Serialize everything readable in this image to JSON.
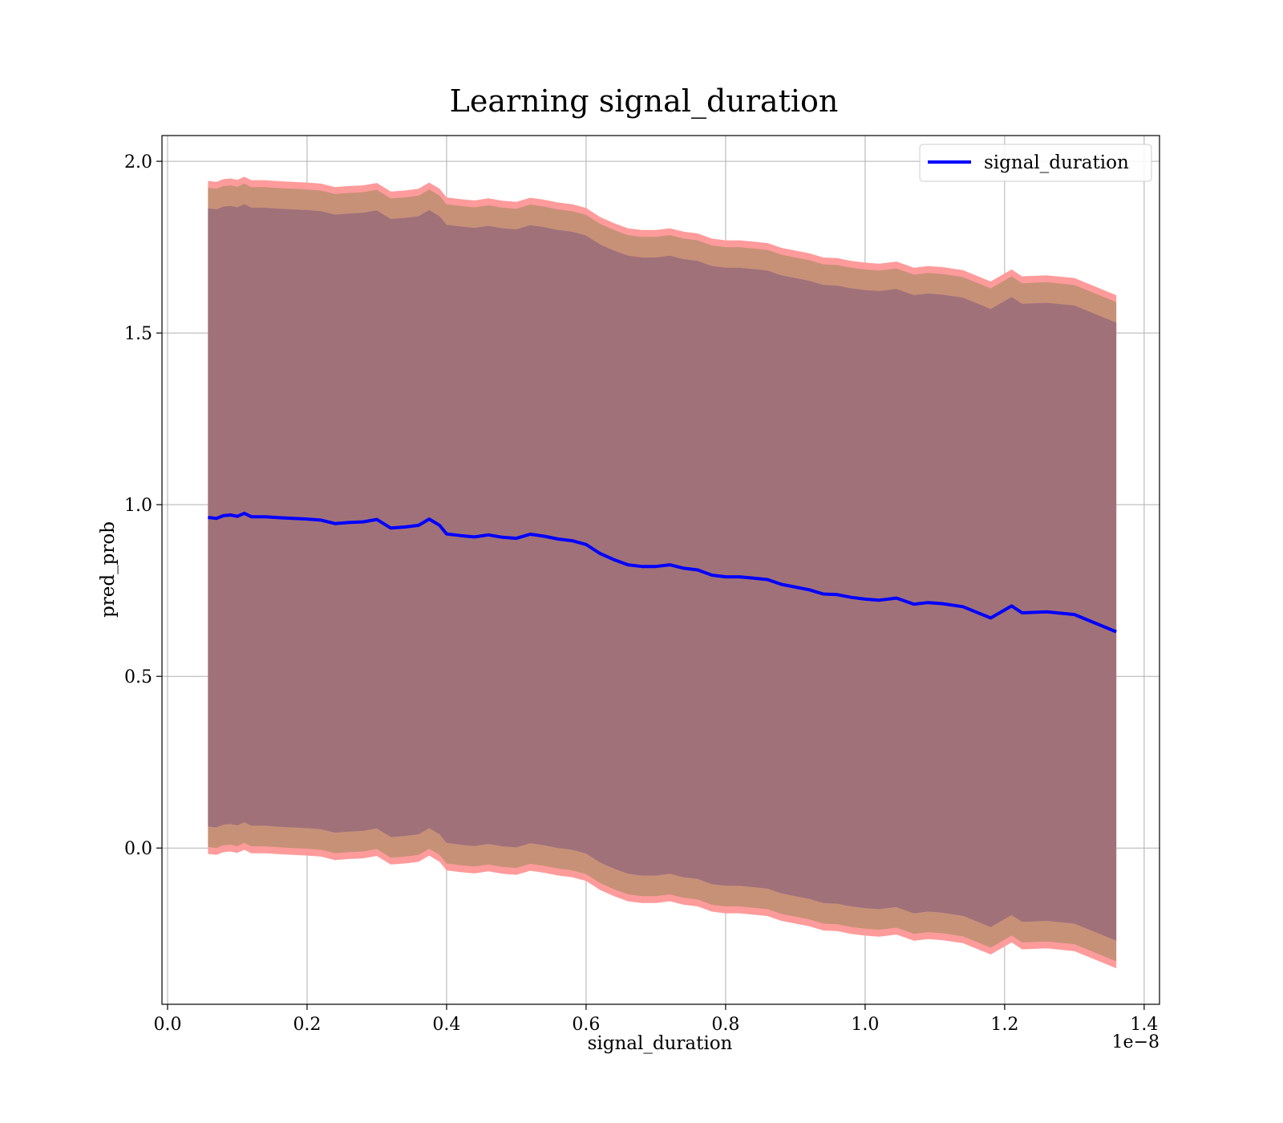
{
  "chart_data": {
    "type": "line",
    "title": "Learning signal_duration",
    "xlabel": "signal_duration",
    "ylabel": "pred_prob",
    "x_offset_label": "1e−8",
    "xlim": [
      -0.008,
      1.422
    ],
    "ylim": [
      -0.455,
      2.075
    ],
    "x_ticks": [
      0.0,
      0.2,
      0.4,
      0.6,
      0.8,
      1.0,
      1.2,
      1.4
    ],
    "x_tick_labels": [
      "0.0",
      "0.2",
      "0.4",
      "0.6",
      "0.8",
      "1.0",
      "1.2",
      "1.4"
    ],
    "y_ticks": [
      0.0,
      0.5,
      1.0,
      1.5,
      2.0
    ],
    "y_tick_labels": [
      "0.0",
      "0.5",
      "1.0",
      "1.5",
      "2.0"
    ],
    "grid": true,
    "legend_position": "top-right",
    "colors": {
      "line": "#0000ff",
      "band_outer": "#ff9b9b",
      "band_middle": "#c79178",
      "band_inner": "#a1717a"
    },
    "series": [
      {
        "name": "signal_duration",
        "x": [
          0.058,
          0.07,
          0.08,
          0.09,
          0.1,
          0.11,
          0.12,
          0.14,
          0.16,
          0.18,
          0.2,
          0.22,
          0.24,
          0.26,
          0.28,
          0.3,
          0.32,
          0.34,
          0.36,
          0.375,
          0.39,
          0.4,
          0.42,
          0.44,
          0.46,
          0.48,
          0.5,
          0.52,
          0.54,
          0.56,
          0.58,
          0.6,
          0.62,
          0.64,
          0.66,
          0.68,
          0.7,
          0.72,
          0.74,
          0.76,
          0.78,
          0.8,
          0.82,
          0.84,
          0.86,
          0.88,
          0.9,
          0.92,
          0.94,
          0.96,
          0.98,
          1.0,
          1.02,
          1.045,
          1.07,
          1.09,
          1.11,
          1.14,
          1.18,
          1.21,
          1.225,
          1.26,
          1.3,
          1.36
        ],
        "y": [
          0.963,
          0.96,
          0.968,
          0.97,
          0.966,
          0.975,
          0.965,
          0.965,
          0.962,
          0.96,
          0.958,
          0.955,
          0.945,
          0.948,
          0.95,
          0.957,
          0.932,
          0.935,
          0.94,
          0.958,
          0.94,
          0.915,
          0.91,
          0.906,
          0.912,
          0.905,
          0.902,
          0.914,
          0.908,
          0.9,
          0.895,
          0.884,
          0.858,
          0.84,
          0.825,
          0.82,
          0.82,
          0.825,
          0.815,
          0.81,
          0.795,
          0.79,
          0.79,
          0.786,
          0.782,
          0.768,
          0.76,
          0.752,
          0.74,
          0.738,
          0.73,
          0.725,
          0.722,
          0.728,
          0.71,
          0.715,
          0.712,
          0.703,
          0.67,
          0.705,
          0.685,
          0.688,
          0.68,
          0.63
        ]
      }
    ],
    "bands": [
      {
        "level": "outer",
        "half_width": [
          0.98,
          0.98,
          0.98,
          0.98,
          0.98,
          0.98,
          0.98,
          0.98,
          0.98,
          0.98,
          0.98,
          0.98,
          0.98,
          0.98,
          0.98,
          0.98,
          0.98,
          0.98,
          0.98,
          0.98,
          0.98,
          0.98,
          0.98,
          0.98,
          0.98,
          0.98,
          0.98,
          0.98,
          0.98,
          0.98,
          0.98,
          0.98,
          0.98,
          0.98,
          0.98,
          0.98,
          0.98,
          0.98,
          0.98,
          0.98,
          0.98,
          0.98,
          0.98,
          0.98,
          0.98,
          0.98,
          0.98,
          0.98,
          0.98,
          0.98,
          0.98,
          0.98,
          0.98,
          0.98,
          0.98,
          0.98,
          0.98,
          0.98,
          0.98,
          0.98,
          0.98,
          0.98,
          0.98,
          0.98
        ]
      },
      {
        "level": "middle",
        "half_width": [
          0.96,
          0.96,
          0.96,
          0.96,
          0.96,
          0.96,
          0.96,
          0.96,
          0.96,
          0.96,
          0.96,
          0.96,
          0.96,
          0.96,
          0.96,
          0.96,
          0.96,
          0.96,
          0.96,
          0.96,
          0.96,
          0.96,
          0.96,
          0.96,
          0.96,
          0.96,
          0.96,
          0.96,
          0.96,
          0.96,
          0.96,
          0.96,
          0.96,
          0.96,
          0.96,
          0.96,
          0.96,
          0.96,
          0.96,
          0.96,
          0.96,
          0.96,
          0.96,
          0.96,
          0.96,
          0.96,
          0.96,
          0.96,
          0.96,
          0.96,
          0.96,
          0.96,
          0.96,
          0.96,
          0.96,
          0.96,
          0.96,
          0.96,
          0.96,
          0.96,
          0.96,
          0.96,
          0.96,
          0.96
        ]
      },
      {
        "level": "inner",
        "half_width": [
          0.9,
          0.9,
          0.9,
          0.9,
          0.9,
          0.9,
          0.9,
          0.9,
          0.9,
          0.9,
          0.9,
          0.9,
          0.9,
          0.9,
          0.9,
          0.9,
          0.9,
          0.9,
          0.9,
          0.9,
          0.9,
          0.9,
          0.9,
          0.9,
          0.9,
          0.9,
          0.9,
          0.9,
          0.9,
          0.9,
          0.9,
          0.9,
          0.9,
          0.9,
          0.9,
          0.9,
          0.9,
          0.9,
          0.9,
          0.9,
          0.9,
          0.9,
          0.9,
          0.9,
          0.9,
          0.9,
          0.9,
          0.9,
          0.9,
          0.9,
          0.9,
          0.9,
          0.9,
          0.9,
          0.9,
          0.9,
          0.9,
          0.9,
          0.9,
          0.9,
          0.9,
          0.9,
          0.9,
          0.9
        ]
      }
    ]
  }
}
